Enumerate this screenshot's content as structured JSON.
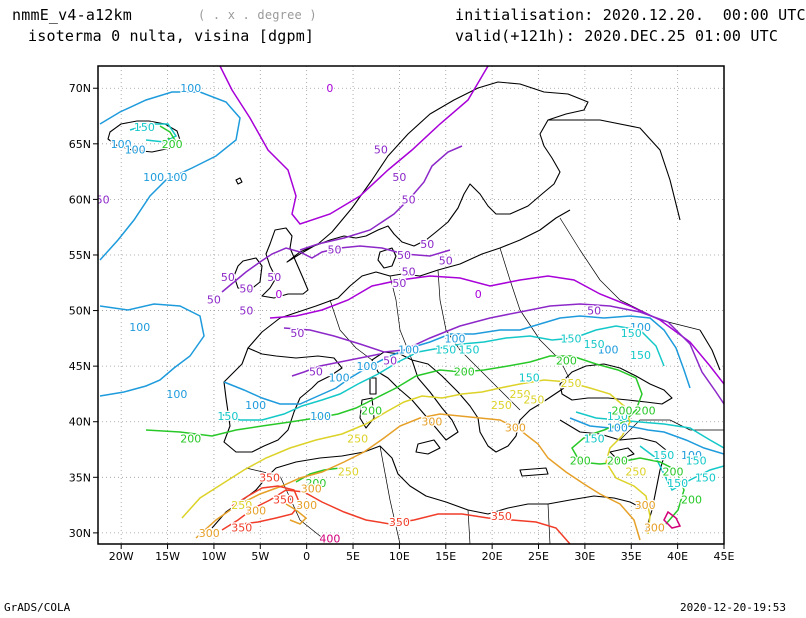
{
  "header": {
    "model": "nmmE_v4-a12km",
    "units": "( . x . degree )",
    "field": "isoterma 0 nulta, visina [dgpm]",
    "init": "initialisation: 2020.12.20.  00:00 UTC",
    "valid": "valid(+121h): 2020.DEC.25 01:00 UTC"
  },
  "footer": {
    "left": "GrADS/COLA",
    "right": "2020-12-20-19:53"
  },
  "axes": {
    "lon_labels": [
      "20W",
      "15W",
      "10W",
      "5W",
      "0",
      "5E",
      "10E",
      "15E",
      "20E",
      "25E",
      "30E",
      "35E",
      "40E",
      "45E"
    ],
    "lat_labels": [
      "70N",
      "65N",
      "60N",
      "55N",
      "50N",
      "45N",
      "40N",
      "35N",
      "30N"
    ]
  },
  "contour_colors": {
    "0": "#a800d8",
    "50": "#8c28c8",
    "100": "#1e9bdc",
    "150": "#14c8c8",
    "200": "#28c828",
    "250": "#dcd228",
    "300": "#e6a028",
    "350": "#f03c28",
    "400": "#d2007a"
  },
  "contour_labels": [
    {
      "text": "100",
      "level": "100",
      "lon": -12.5,
      "lat": 70.0
    },
    {
      "text": "150",
      "level": "150",
      "lon": -17.5,
      "lat": 66.5
    },
    {
      "text": "200",
      "level": "200",
      "lon": -14.5,
      "lat": 65.0
    },
    {
      "text": "100",
      "level": "100",
      "lon": -20.0,
      "lat": 65.0
    },
    {
      "text": "100",
      "level": "100",
      "lon": -18.5,
      "lat": 64.5
    },
    {
      "text": "100",
      "level": "100",
      "lon": -16.5,
      "lat": 62.0
    },
    {
      "text": "100",
      "level": "100",
      "lon": -14.0,
      "lat": 62.0
    },
    {
      "text": "50",
      "level": "50",
      "lon": -22.0,
      "lat": 60.0
    },
    {
      "text": "0",
      "level": "0",
      "lon": 2.5,
      "lat": 70.0
    },
    {
      "text": "50",
      "level": "50",
      "lon": 8.0,
      "lat": 64.5
    },
    {
      "text": "50",
      "level": "50",
      "lon": 10.0,
      "lat": 62.0
    },
    {
      "text": "50",
      "level": "50",
      "lon": 11.0,
      "lat": 60.0
    },
    {
      "text": "50",
      "level": "50",
      "lon": 3.0,
      "lat": 55.5
    },
    {
      "text": "50",
      "level": "50",
      "lon": -8.5,
      "lat": 53.0
    },
    {
      "text": "50",
      "level": "50",
      "lon": -6.5,
      "lat": 52.0
    },
    {
      "text": "50",
      "level": "50",
      "lon": -3.5,
      "lat": 53.0
    },
    {
      "text": "50",
      "level": "50",
      "lon": -10.0,
      "lat": 51.0
    },
    {
      "text": "50",
      "level": "50",
      "lon": -6.5,
      "lat": 50.0
    },
    {
      "text": "0",
      "level": "0",
      "lon": -3.0,
      "lat": 51.5
    },
    {
      "text": "50",
      "level": "50",
      "lon": 13.0,
      "lat": 56.0
    },
    {
      "text": "50",
      "level": "50",
      "lon": 10.5,
      "lat": 55.0
    },
    {
      "text": "50",
      "level": "50",
      "lon": 11.0,
      "lat": 53.5
    },
    {
      "text": "50",
      "level": "50",
      "lon": 10.0,
      "lat": 52.5
    },
    {
      "text": "50",
      "level": "50",
      "lon": 15.0,
      "lat": 54.5
    },
    {
      "text": "0",
      "level": "0",
      "lon": 18.5,
      "lat": 51.5
    },
    {
      "text": "50",
      "level": "50",
      "lon": 31.0,
      "lat": 50.0
    },
    {
      "text": "50",
      "level": "50",
      "lon": -1.0,
      "lat": 48.0
    },
    {
      "text": "50",
      "level": "50",
      "lon": 9.0,
      "lat": 45.5
    },
    {
      "text": "50",
      "level": "50",
      "lon": 1.0,
      "lat": 44.5
    },
    {
      "text": "100",
      "level": "100",
      "lon": -18.0,
      "lat": 48.5
    },
    {
      "text": "100",
      "level": "100",
      "lon": -14.0,
      "lat": 42.5
    },
    {
      "text": "100",
      "level": "100",
      "lon": 3.5,
      "lat": 44.0
    },
    {
      "text": "100",
      "level": "100",
      "lon": 6.5,
      "lat": 45.0
    },
    {
      "text": "100",
      "level": "100",
      "lon": -5.5,
      "lat": 41.5
    },
    {
      "text": "100",
      "level": "100",
      "lon": 1.5,
      "lat": 40.5
    },
    {
      "text": "100",
      "level": "100",
      "lon": 16.0,
      "lat": 47.5
    },
    {
      "text": "100",
      "level": "100",
      "lon": 11.0,
      "lat": 46.5
    },
    {
      "text": "100",
      "level": "100",
      "lon": 36.0,
      "lat": 48.5
    },
    {
      "text": "100",
      "level": "100",
      "lon": 32.5,
      "lat": 46.5
    },
    {
      "text": "100",
      "level": "100",
      "lon": 33.5,
      "lat": 39.5
    },
    {
      "text": "100",
      "level": "100",
      "lon": 41.5,
      "lat": 37.0
    },
    {
      "text": "150",
      "level": "150",
      "lon": -8.5,
      "lat": 40.5
    },
    {
      "text": "150",
      "level": "150",
      "lon": 15.0,
      "lat": 46.5
    },
    {
      "text": "150",
      "level": "150",
      "lon": 17.5,
      "lat": 46.5
    },
    {
      "text": "150",
      "level": "150",
      "lon": 28.5,
      "lat": 47.5
    },
    {
      "text": "150",
      "level": "150",
      "lon": 31.0,
      "lat": 47.0
    },
    {
      "text": "150",
      "level": "150",
      "lon": 35.0,
      "lat": 48.0
    },
    {
      "text": "150",
      "level": "150",
      "lon": 36.0,
      "lat": 46.0
    },
    {
      "text": "150",
      "level": "150",
      "lon": 24.0,
      "lat": 44.0
    },
    {
      "text": "150",
      "level": "150",
      "lon": 33.5,
      "lat": 40.5
    },
    {
      "text": "150",
      "level": "150",
      "lon": 31.0,
      "lat": 38.5
    },
    {
      "text": "150",
      "level": "150",
      "lon": 38.5,
      "lat": 37.0
    },
    {
      "text": "150",
      "level": "150",
      "lon": 40.0,
      "lat": 34.5
    },
    {
      "text": "150",
      "level": "150",
      "lon": 43.0,
      "lat": 35.0
    },
    {
      "text": "150",
      "level": "150",
      "lon": 42.0,
      "lat": 36.5
    },
    {
      "text": "200",
      "level": "200",
      "lon": 28.0,
      "lat": 45.5
    },
    {
      "text": "200",
      "level": "200",
      "lon": 17.0,
      "lat": 44.5
    },
    {
      "text": "200",
      "level": "200",
      "lon": 7.0,
      "lat": 41.0
    },
    {
      "text": "200",
      "level": "200",
      "lon": -12.5,
      "lat": 38.5
    },
    {
      "text": "200",
      "level": "200",
      "lon": 1.0,
      "lat": 34.5
    },
    {
      "text": "200",
      "level": "200",
      "lon": 34.0,
      "lat": 41.0
    },
    {
      "text": "200",
      "level": "200",
      "lon": 36.5,
      "lat": 41.0
    },
    {
      "text": "200",
      "level": "200",
      "lon": 29.5,
      "lat": 36.5
    },
    {
      "text": "200",
      "level": "200",
      "lon": 33.5,
      "lat": 36.5
    },
    {
      "text": "200",
      "level": "200",
      "lon": 39.5,
      "lat": 35.5
    },
    {
      "text": "200",
      "level": "200",
      "lon": 41.5,
      "lat": 33.0
    },
    {
      "text": "250",
      "level": "250",
      "lon": 28.5,
      "lat": 43.5
    },
    {
      "text": "250",
      "level": "250",
      "lon": 21.0,
      "lat": 41.5
    },
    {
      "text": "250",
      "level": "250",
      "lon": 23.0,
      "lat": 42.5
    },
    {
      "text": "250",
      "level": "250",
      "lon": 24.5,
      "lat": 42.0
    },
    {
      "text": "250",
      "level": "250",
      "lon": 5.5,
      "lat": 38.5
    },
    {
      "text": "250",
      "level": "250",
      "lon": 4.5,
      "lat": 35.5
    },
    {
      "text": "250",
      "level": "250",
      "lon": -7.0,
      "lat": 32.5
    },
    {
      "text": "250",
      "level": "250",
      "lon": 35.5,
      "lat": 35.5
    },
    {
      "text": "300",
      "level": "300",
      "lon": 13.5,
      "lat": 40.0
    },
    {
      "text": "300",
      "level": "300",
      "lon": 22.5,
      "lat": 39.5
    },
    {
      "text": "300",
      "level": "300",
      "lon": 0.5,
      "lat": 34.0
    },
    {
      "text": "300",
      "level": "300",
      "lon": -5.5,
      "lat": 32.0
    },
    {
      "text": "300",
      "level": "300",
      "lon": -10.5,
      "lat": 30.0
    },
    {
      "text": "300",
      "level": "300",
      "lon": 0.0,
      "lat": 32.5
    },
    {
      "text": "300",
      "level": "300",
      "lon": 37.5,
      "lat": 30.5
    },
    {
      "text": "300",
      "level": "300",
      "lon": 36.5,
      "lat": 32.5
    },
    {
      "text": "350",
      "level": "350",
      "lon": -4.0,
      "lat": 35.0
    },
    {
      "text": "350",
      "level": "350",
      "lon": -2.5,
      "lat": 33.0
    },
    {
      "text": "350",
      "level": "350",
      "lon": -7.0,
      "lat": 30.5
    },
    {
      "text": "350",
      "level": "350",
      "lon": 10.0,
      "lat": 31.0
    },
    {
      "text": "350",
      "level": "350",
      "lon": 21.0,
      "lat": 31.5
    },
    {
      "text": "400",
      "level": "400",
      "lon": 2.5,
      "lat": 29.5
    }
  ]
}
